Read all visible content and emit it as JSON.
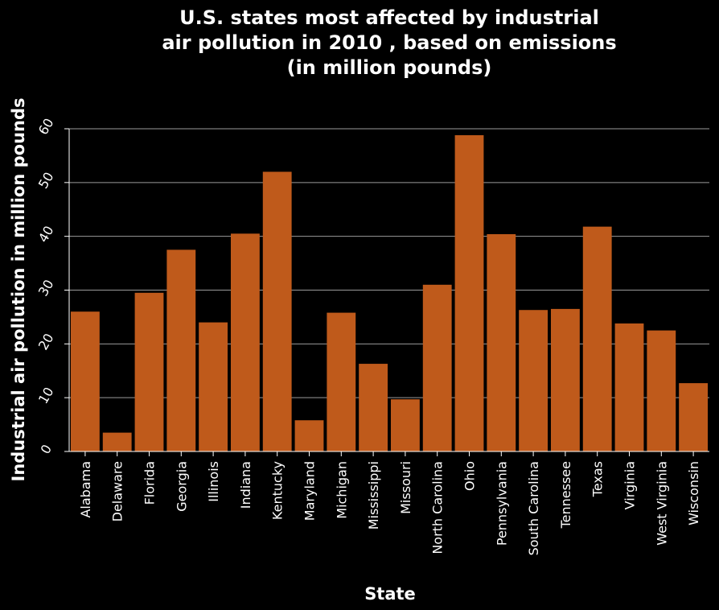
{
  "chart_data": {
    "type": "bar",
    "title": "U.S. states most affected by industrial air pollution in 2010 , based on emissions (in million pounds)",
    "title_lines": [
      "U.S. states most affected by industrial",
      "air pollution in 2010 , based on emissions",
      "(in million pounds)"
    ],
    "xlabel": "State",
    "ylabel": "Industrial air pollution in million pounds",
    "ylim": [
      0,
      60
    ],
    "yticks": [
      0,
      10,
      20,
      30,
      40,
      50,
      60
    ],
    "grid": true,
    "bar_color": "#bf5a1b",
    "background": "#000000",
    "categories": [
      "Alabama",
      "Delaware",
      "Florida",
      "Georgia",
      "Illinois",
      "Indiana",
      "Kentucky",
      "Maryland",
      "Michigan",
      "Mississippi",
      "Missouri",
      "North Carolina",
      "Ohio",
      "Pennsylvania",
      "South Carolina",
      "Tennessee",
      "Texas",
      "Virginia",
      "West Virginia",
      "Wisconsin"
    ],
    "values": [
      26,
      3.5,
      29.5,
      37.5,
      24,
      40.5,
      52,
      5.8,
      25.8,
      16.3,
      9.7,
      31,
      58.8,
      40.4,
      26.3,
      26.5,
      41.8,
      23.8,
      22.5,
      12.7
    ]
  }
}
